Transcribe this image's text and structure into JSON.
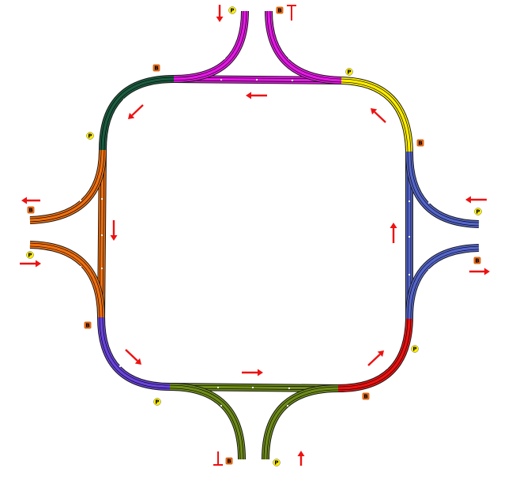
{
  "labels": {
    "platform": "P",
    "block": "B"
  },
  "colors": {
    "track_outline": "#1a1a1a",
    "rail_line": "#000000",
    "arrow": "#ee1111",
    "platform_marker": "#ffee00",
    "block_marker": "#e06818",
    "sleeper_dot": "#ffffff",
    "top_left_curve": "#1c5c40",
    "top_straight": "#e619e6",
    "top_right_curve": "#ffee00",
    "right_straight": "#5566cc",
    "bottom_right_curve": "#ee1111",
    "bottom_straight": "#6f8c1a",
    "bottom_left_curve": "#6a44e0",
    "left_straight": "#f07010"
  },
  "track_sections": [
    {
      "id": "top-left-curve",
      "color_key": "top_left_curve"
    },
    {
      "id": "top-straight",
      "color_key": "top_straight"
    },
    {
      "id": "top-right-curve",
      "color_key": "top_right_curve"
    },
    {
      "id": "right-straight",
      "color_key": "right_straight"
    },
    {
      "id": "bottom-right-curve",
      "color_key": "bottom_right_curve"
    },
    {
      "id": "bottom-straight",
      "color_key": "bottom_straight"
    },
    {
      "id": "bottom-left-curve",
      "color_key": "bottom_left_curve"
    },
    {
      "id": "left-straight",
      "color_key": "left_straight"
    }
  ],
  "icons": {
    "arrow": "direction-arrow-icon",
    "end_stop": "end-stop-arrow-icon"
  }
}
